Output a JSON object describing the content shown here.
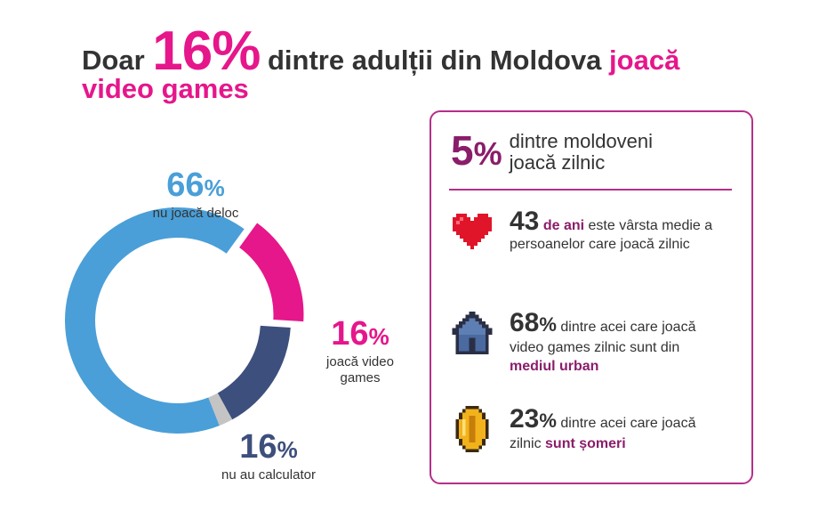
{
  "headline": {
    "prefix": "Doar",
    "big_value": "16",
    "big_unit": "%",
    "middle": " dintre adulții din Moldova ",
    "highlight": "joacă",
    "line2": "video games"
  },
  "chart_data": {
    "type": "pie",
    "categories": [
      "nu joacă deloc",
      "joacă video games",
      "nu au calculator",
      ""
    ],
    "values": [
      66,
      16,
      16,
      2
    ],
    "colors": [
      "#4a9fd8",
      "#e6168b",
      "#3d4f7c",
      "#c4c4c4"
    ],
    "labels": [
      {
        "value": "66",
        "unit": "%",
        "text": "nu joacă deloc",
        "color": "#4a9fd8"
      },
      {
        "value": "16",
        "unit": "%",
        "text": "joacă video games",
        "color": "#e6168b"
      },
      {
        "value": "16",
        "unit": "%",
        "text": "nu au calculator",
        "color": "#3d4f7c"
      }
    ]
  },
  "card": {
    "headline_value": "5",
    "headline_unit": "%",
    "headline_text": "dintre moldoveni joacă zilnic",
    "items": [
      {
        "icon": "heart-icon",
        "value": "43",
        "accent_inline": " de ani",
        "text": " este vârsta medie a persoanelor care joacă zilnic",
        "accent_end": ""
      },
      {
        "icon": "house-icon",
        "value": "68",
        "unit": "%",
        "text": " dintre acei care joacă video games zilnic sunt din ",
        "accent_end": "mediul urban"
      },
      {
        "icon": "coin-icon",
        "value": "23",
        "unit": "%",
        "text": " dintre acei care joacă zilnic ",
        "accent_end": "sunt șomeri"
      }
    ]
  }
}
